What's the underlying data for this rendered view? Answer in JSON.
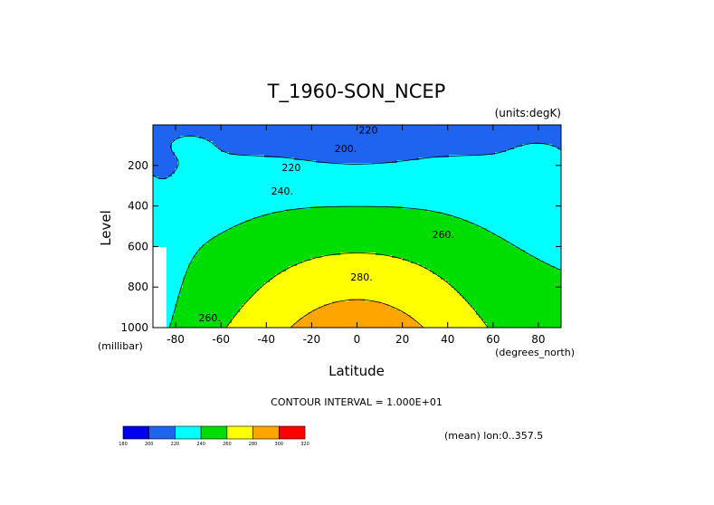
{
  "chart_data": {
    "type": "contour",
    "title": "T_1960-SON_NCEP",
    "units": "(units:degK)",
    "xlabel": "Latitude",
    "ylabel": "Level",
    "xunit": "(degrees_north)",
    "yunit": "(millibar)",
    "xlim": [
      -90,
      90
    ],
    "ylim": [
      1000,
      0
    ],
    "xticks": [
      -80,
      -60,
      -40,
      -20,
      0,
      20,
      40,
      60,
      80
    ],
    "yticks": [
      200,
      400,
      600,
      800,
      1000
    ],
    "contour_interval_text": "CONTOUR INTERVAL = 1.000E+01",
    "mean_text": "(mean) lon:0..357.5",
    "contour_labels": [
      {
        "text": "220",
        "lat": 5,
        "lev": 30
      },
      {
        "text": "200.",
        "lat": -5,
        "lev": 120
      },
      {
        "text": "220",
        "lat": -29,
        "lev": 215
      },
      {
        "text": "240.",
        "lat": -33,
        "lev": 330
      },
      {
        "text": "260.",
        "lat": 38,
        "lev": 545
      },
      {
        "text": "280.",
        "lat": 2,
        "lev": 755
      },
      {
        "text": "260.",
        "lat": -65,
        "lev": 955
      }
    ],
    "levels": [
      180,
      200,
      220,
      240,
      260,
      280,
      300,
      320
    ],
    "colors": [
      "#0000ee",
      "#1e64f0",
      "#00ffff",
      "#00dd00",
      "#ffff00",
      "#ffa500",
      "#ff0000"
    ],
    "colorbar_labels": [
      "180",
      "200",
      "220",
      "240",
      "260",
      "280",
      "300",
      "320"
    ]
  }
}
